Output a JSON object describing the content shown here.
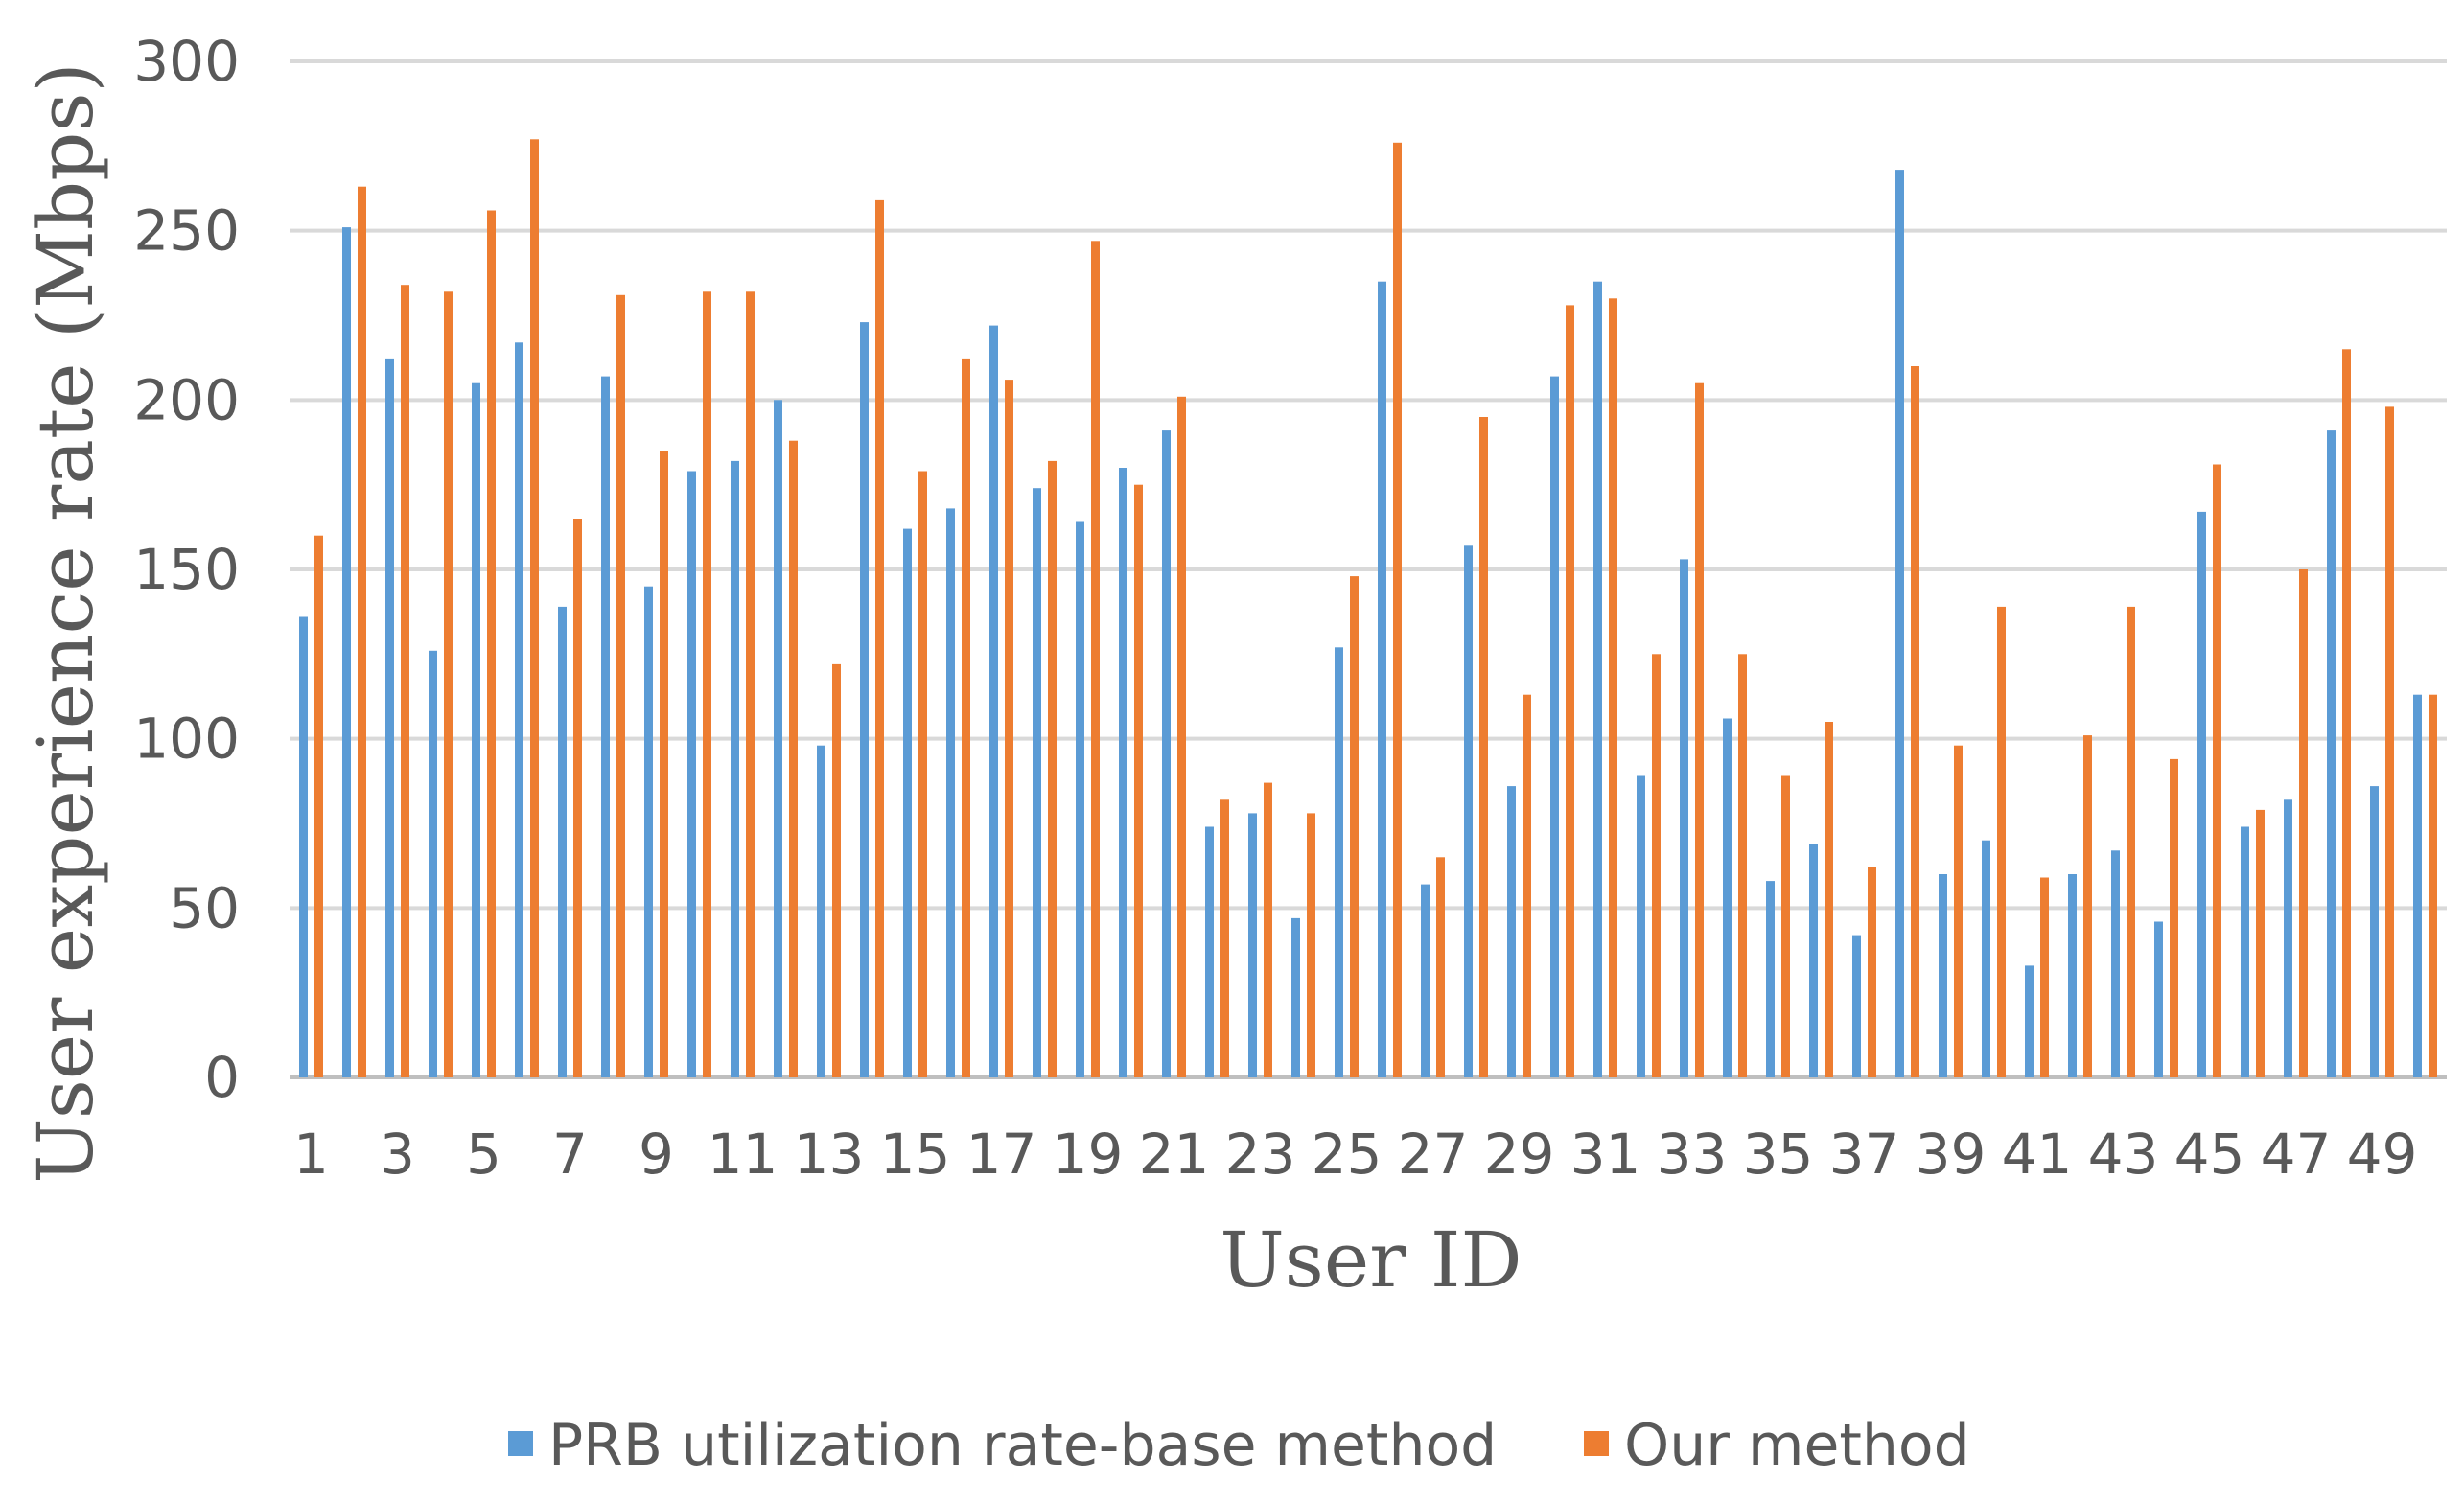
{
  "chart_data": {
    "type": "bar",
    "title": "",
    "xlabel": "User ID",
    "ylabel": "User experience rate (Mbps)",
    "ylim": [
      0,
      300
    ],
    "yticks": [
      0,
      50,
      100,
      150,
      200,
      250,
      300
    ],
    "grid": true,
    "legend_position": "bottom",
    "categories": [
      "1",
      "2",
      "3",
      "4",
      "5",
      "6",
      "7",
      "8",
      "9",
      "10",
      "11",
      "12",
      "13",
      "14",
      "15",
      "16",
      "17",
      "18",
      "19",
      "20",
      "21",
      "22",
      "23",
      "24",
      "25",
      "26",
      "27",
      "28",
      "29",
      "30",
      "31",
      "32",
      "33",
      "34",
      "35",
      "36",
      "37",
      "38",
      "39",
      "40",
      "41",
      "42",
      "43",
      "44",
      "45",
      "46",
      "47",
      "48",
      "49",
      "50"
    ],
    "xtick_labels": [
      "1",
      "3",
      "5",
      "7",
      "9",
      "11",
      "13",
      "15",
      "17",
      "19",
      "21",
      "23",
      "25",
      "27",
      "29",
      "31",
      "33",
      "35",
      "37",
      "39",
      "41",
      "43",
      "45",
      "47",
      "49"
    ],
    "series": [
      {
        "name": "PRB utilization rate-base method",
        "color": "#5b9bd5",
        "values": [
          136,
          251,
          212,
          126,
          205,
          217,
          139,
          207,
          145,
          179,
          182,
          200,
          98,
          223,
          162,
          168,
          222,
          174,
          164,
          180,
          191,
          74,
          78,
          47,
          127,
          235,
          57,
          157,
          86,
          207,
          235,
          89,
          153,
          106,
          58,
          69,
          42,
          268,
          60,
          70,
          33,
          60,
          67,
          46,
          167,
          74,
          82,
          191,
          86,
          113
        ]
      },
      {
        "name": "Our method",
        "color": "#ed7d31",
        "values": [
          160,
          263,
          234,
          232,
          256,
          277,
          165,
          231,
          185,
          232,
          232,
          188,
          122,
          259,
          179,
          212,
          206,
          182,
          247,
          175,
          201,
          82,
          87,
          78,
          148,
          276,
          65,
          195,
          113,
          228,
          230,
          125,
          205,
          125,
          89,
          105,
          62,
          210,
          98,
          139,
          59,
          101,
          139,
          94,
          181,
          79,
          150,
          215,
          198,
          113
        ]
      }
    ]
  }
}
